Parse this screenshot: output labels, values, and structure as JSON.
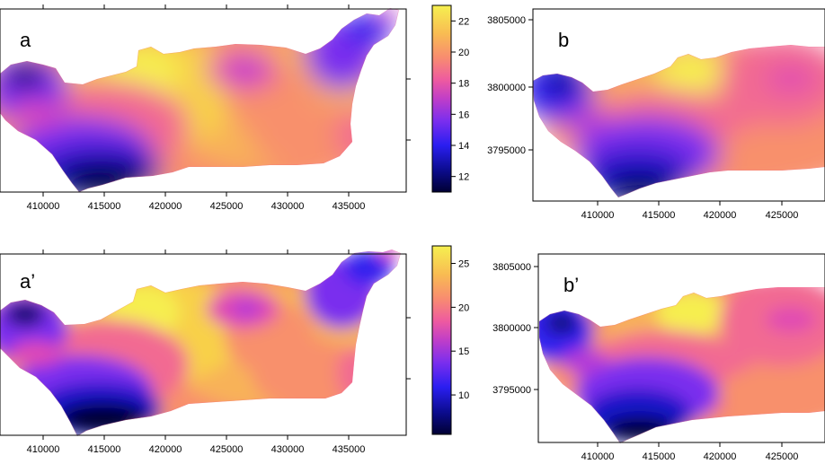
{
  "panels": [
    {
      "id": "a",
      "label": "a",
      "x_ticks": [
        "410000",
        "415000",
        "420000",
        "425000",
        "430000",
        "435000"
      ],
      "y_ticks": []
    },
    {
      "id": "b",
      "label": "b",
      "x_ticks": [
        "410000",
        "415000",
        "420000",
        "425000"
      ],
      "y_ticks": [
        "3805000",
        "3800000",
        "3795000"
      ]
    },
    {
      "id": "a2",
      "label": "a’",
      "x_ticks": [
        "410000",
        "415000",
        "420000",
        "425000",
        "430000",
        "435000"
      ],
      "y_ticks": []
    },
    {
      "id": "b2",
      "label": "b’",
      "x_ticks": [
        "410000",
        "415000",
        "420000",
        "425000"
      ],
      "y_ticks": [
        "3805000",
        "3800000",
        "3795000"
      ]
    }
  ],
  "colorbars": [
    {
      "id": "cb-top",
      "ticks": [
        "22",
        "20",
        "18",
        "16",
        "14",
        "12"
      ],
      "range": [
        11,
        23
      ]
    },
    {
      "id": "cb-bottom",
      "ticks": [
        "25",
        "20",
        "15",
        "10"
      ],
      "range": [
        5.5,
        27
      ]
    }
  ],
  "palette": [
    "#000033",
    "#0a0a70",
    "#1414c8",
    "#3322ee",
    "#7a2eee",
    "#b43ad8",
    "#e048b4",
    "#f26a92",
    "#f8906c",
    "#f8b258",
    "#f8d048",
    "#f6ee50"
  ],
  "chart_data": [
    {
      "type": "heatmap",
      "panel": "a",
      "x_ticks": [
        410000,
        415000,
        420000,
        425000,
        430000,
        435000
      ],
      "colorbar_ticks": [
        22,
        20,
        18,
        16,
        14,
        12
      ],
      "colorbar_range": [
        11,
        23
      ]
    },
    {
      "type": "heatmap",
      "panel": "b",
      "x_ticks": [
        410000,
        415000,
        420000,
        425000
      ],
      "y_ticks": [
        3805000,
        3800000,
        3795000
      ]
    },
    {
      "type": "heatmap",
      "panel": "a’",
      "x_ticks": [
        410000,
        415000,
        420000,
        425000,
        430000,
        435000
      ],
      "colorbar_ticks": [
        25,
        20,
        15,
        10
      ],
      "colorbar_range": [
        5.5,
        27
      ]
    },
    {
      "type": "heatmap",
      "panel": "b’",
      "x_ticks": [
        410000,
        415000,
        420000,
        425000
      ],
      "y_ticks": [
        3805000,
        3800000,
        3795000
      ]
    }
  ]
}
